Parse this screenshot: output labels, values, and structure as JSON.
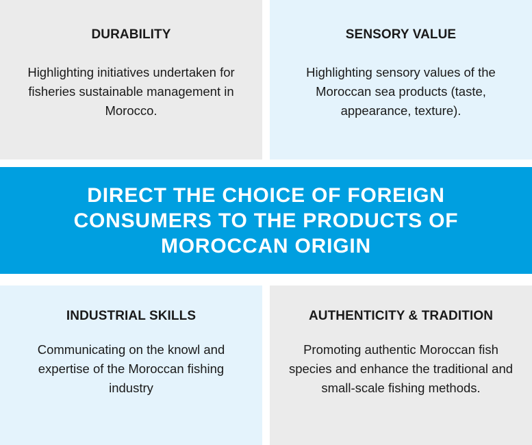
{
  "top_left": {
    "title": "DURABILITY",
    "body": "Highlighting initiatives undertaken for fisheries sustainable management in Morocco."
  },
  "top_right": {
    "title": "SENSORY VALUE",
    "body": "Highlighting sensory values of the Moroccan sea products (taste, appearance, texture)."
  },
  "banner": {
    "text": "DIRECT THE CHOICE OF FOREIGN CONSUMERS TO THE PRODUCTS OF MOROCCAN ORIGIN"
  },
  "bottom_left": {
    "title": "INDUSTRIAL SKILLS",
    "body": "Communicating on the knowl and expertise of the Moroccan fishing industry"
  },
  "bottom_right": {
    "title": "AUTHENTICITY & TRADITION",
    "body": "Promoting authentic Moroccan fish species and enhance the traditional and small-scale fishing methods."
  },
  "colors": {
    "banner": "#009fe0",
    "card_gray": "#ebebeb",
    "card_blue": "#e4f3fc"
  }
}
